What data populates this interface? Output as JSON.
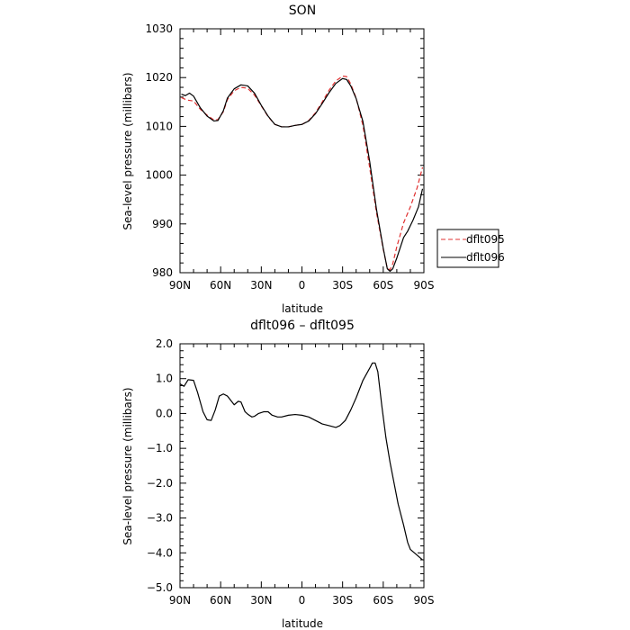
{
  "chart_data": [
    {
      "type": "line",
      "title": "SON",
      "xlabel": "latitude",
      "ylabel": "Sea-level pressure (millibars)",
      "xlim": [
        90,
        -90
      ],
      "ylim": [
        980,
        1030
      ],
      "x_ticks": [
        90,
        60,
        30,
        0,
        -30,
        -60,
        -90
      ],
      "x_tick_labels": [
        "90N",
        "60N",
        "30N",
        "0",
        "30S",
        "60S",
        "90S"
      ],
      "y_ticks": [
        980,
        990,
        1000,
        1010,
        1020,
        1030
      ],
      "y_tick_labels": [
        "980",
        "990",
        "1000",
        "1010",
        "1020",
        "1030"
      ],
      "legend_position": "right",
      "series": [
        {
          "name": "dflt095",
          "color": "#e03030",
          "dash": "dashed",
          "points": [
            [
              89,
              1015.9
            ],
            [
              85,
              1015.4
            ],
            [
              80,
              1015.2
            ],
            [
              75,
              1013.5
            ],
            [
              70,
              1012.3
            ],
            [
              65,
              1011.3
            ],
            [
              62,
              1011.4
            ],
            [
              58,
              1013.0
            ],
            [
              55,
              1015.5
            ],
            [
              50,
              1017.3
            ],
            [
              45,
              1018.0
            ],
            [
              40,
              1017.8
            ],
            [
              35,
              1016.4
            ],
            [
              30,
              1014.2
            ],
            [
              25,
              1012.0
            ],
            [
              20,
              1010.4
            ],
            [
              15,
              1009.9
            ],
            [
              10,
              1009.9
            ],
            [
              5,
              1010.2
            ],
            [
              0,
              1010.4
            ],
            [
              -5,
              1011.2
            ],
            [
              -10,
              1012.8
            ],
            [
              -15,
              1015.0
            ],
            [
              -20,
              1017.4
            ],
            [
              -25,
              1019.3
            ],
            [
              -30,
              1020.3
            ],
            [
              -33,
              1020.2
            ],
            [
              -36,
              1018.7
            ],
            [
              -40,
              1015.8
            ],
            [
              -45,
              1010.2
            ],
            [
              -50,
              1001.5
            ],
            [
              -55,
              992.3
            ],
            [
              -60,
              984.8
            ],
            [
              -63,
              980.9
            ],
            [
              -65,
              980.6
            ],
            [
              -67,
              981.8
            ],
            [
              -70,
              985.3
            ],
            [
              -75,
              990.2
            ],
            [
              -80,
              993.5
            ],
            [
              -85,
              997.4
            ],
            [
              -89,
              1001.6
            ]
          ]
        },
        {
          "name": "dflt096",
          "color": "#000000",
          "dash": "solid",
          "points": [
            [
              89,
              1016.6
            ],
            [
              86,
              1016.3
            ],
            [
              83,
              1016.8
            ],
            [
              80,
              1016.2
            ],
            [
              75,
              1013.8
            ],
            [
              70,
              1012.1
            ],
            [
              65,
              1011.1
            ],
            [
              62,
              1011.2
            ],
            [
              58,
              1013.2
            ],
            [
              55,
              1015.8
            ],
            [
              50,
              1017.7
            ],
            [
              45,
              1018.5
            ],
            [
              40,
              1018.3
            ],
            [
              35,
              1016.8
            ],
            [
              30,
              1014.3
            ],
            [
              25,
              1012.1
            ],
            [
              20,
              1010.4
            ],
            [
              15,
              1009.9
            ],
            [
              10,
              1009.9
            ],
            [
              5,
              1010.2
            ],
            [
              0,
              1010.4
            ],
            [
              -5,
              1011.1
            ],
            [
              -10,
              1012.6
            ],
            [
              -15,
              1014.7
            ],
            [
              -20,
              1016.9
            ],
            [
              -25,
              1018.8
            ],
            [
              -30,
              1019.8
            ],
            [
              -33,
              1019.6
            ],
            [
              -36,
              1018.3
            ],
            [
              -40,
              1015.7
            ],
            [
              -45,
              1011.0
            ],
            [
              -50,
              1002.8
            ],
            [
              -55,
              993.0
            ],
            [
              -60,
              985.0
            ],
            [
              -63,
              980.8
            ],
            [
              -65,
              980.3
            ],
            [
              -67,
              980.8
            ],
            [
              -70,
              983.0
            ],
            [
              -75,
              987.2
            ],
            [
              -78,
              988.5
            ],
            [
              -82,
              990.8
            ],
            [
              -86,
              993.5
            ],
            [
              -89,
              997.2
            ]
          ]
        }
      ]
    },
    {
      "type": "line",
      "title": "dflt096 – dflt095",
      "xlabel": "latitude",
      "ylabel": "Sea-level pressure (millibars)",
      "xlim": [
        90,
        -90
      ],
      "ylim": [
        -5,
        2
      ],
      "x_ticks": [
        90,
        60,
        30,
        0,
        -30,
        -60,
        -90
      ],
      "x_tick_labels": [
        "90N",
        "60N",
        "30N",
        "0",
        "30S",
        "60S",
        "90S"
      ],
      "y_ticks": [
        -5,
        -4,
        -3,
        -2,
        -1,
        0,
        1,
        2
      ],
      "y_tick_labels": [
        "−5.0",
        "−4.0",
        "−3.0",
        "−2.0",
        "−1.0",
        "0.0",
        "1.0",
        "2.0"
      ],
      "series": [
        {
          "color": "#000000",
          "dash": "solid",
          "points": [
            [
              90,
              0.85
            ],
            [
              87,
              0.78
            ],
            [
              84,
              0.97
            ],
            [
              80,
              0.95
            ],
            [
              77,
              0.6
            ],
            [
              73,
              0.05
            ],
            [
              70,
              -0.18
            ],
            [
              67,
              -0.2
            ],
            [
              64,
              0.1
            ],
            [
              61,
              0.5
            ],
            [
              58,
              0.56
            ],
            [
              55,
              0.5
            ],
            [
              52,
              0.35
            ],
            [
              50,
              0.25
            ],
            [
              47,
              0.35
            ],
            [
              45,
              0.33
            ],
            [
              42,
              0.05
            ],
            [
              40,
              -0.02
            ],
            [
              37,
              -0.1
            ],
            [
              35,
              -0.08
            ],
            [
              32,
              0.0
            ],
            [
              28,
              0.05
            ],
            [
              25,
              0.05
            ],
            [
              22,
              -0.05
            ],
            [
              18,
              -0.1
            ],
            [
              15,
              -0.1
            ],
            [
              10,
              -0.05
            ],
            [
              5,
              -0.03
            ],
            [
              0,
              -0.05
            ],
            [
              -5,
              -0.1
            ],
            [
              -10,
              -0.2
            ],
            [
              -15,
              -0.3
            ],
            [
              -20,
              -0.35
            ],
            [
              -25,
              -0.4
            ],
            [
              -28,
              -0.35
            ],
            [
              -32,
              -0.2
            ],
            [
              -36,
              0.1
            ],
            [
              -40,
              0.45
            ],
            [
              -45,
              0.95
            ],
            [
              -50,
              1.3
            ],
            [
              -52,
              1.45
            ],
            [
              -54,
              1.45
            ],
            [
              -56,
              1.2
            ],
            [
              -59,
              0.2
            ],
            [
              -62,
              -0.7
            ],
            [
              -65,
              -1.4
            ],
            [
              -68,
              -2.0
            ],
            [
              -71,
              -2.6
            ],
            [
              -75,
              -3.2
            ],
            [
              -78,
              -3.7
            ],
            [
              -80,
              -3.9
            ],
            [
              -83,
              -4.0
            ],
            [
              -86,
              -4.1
            ],
            [
              -89,
              -4.2
            ]
          ]
        }
      ]
    }
  ]
}
